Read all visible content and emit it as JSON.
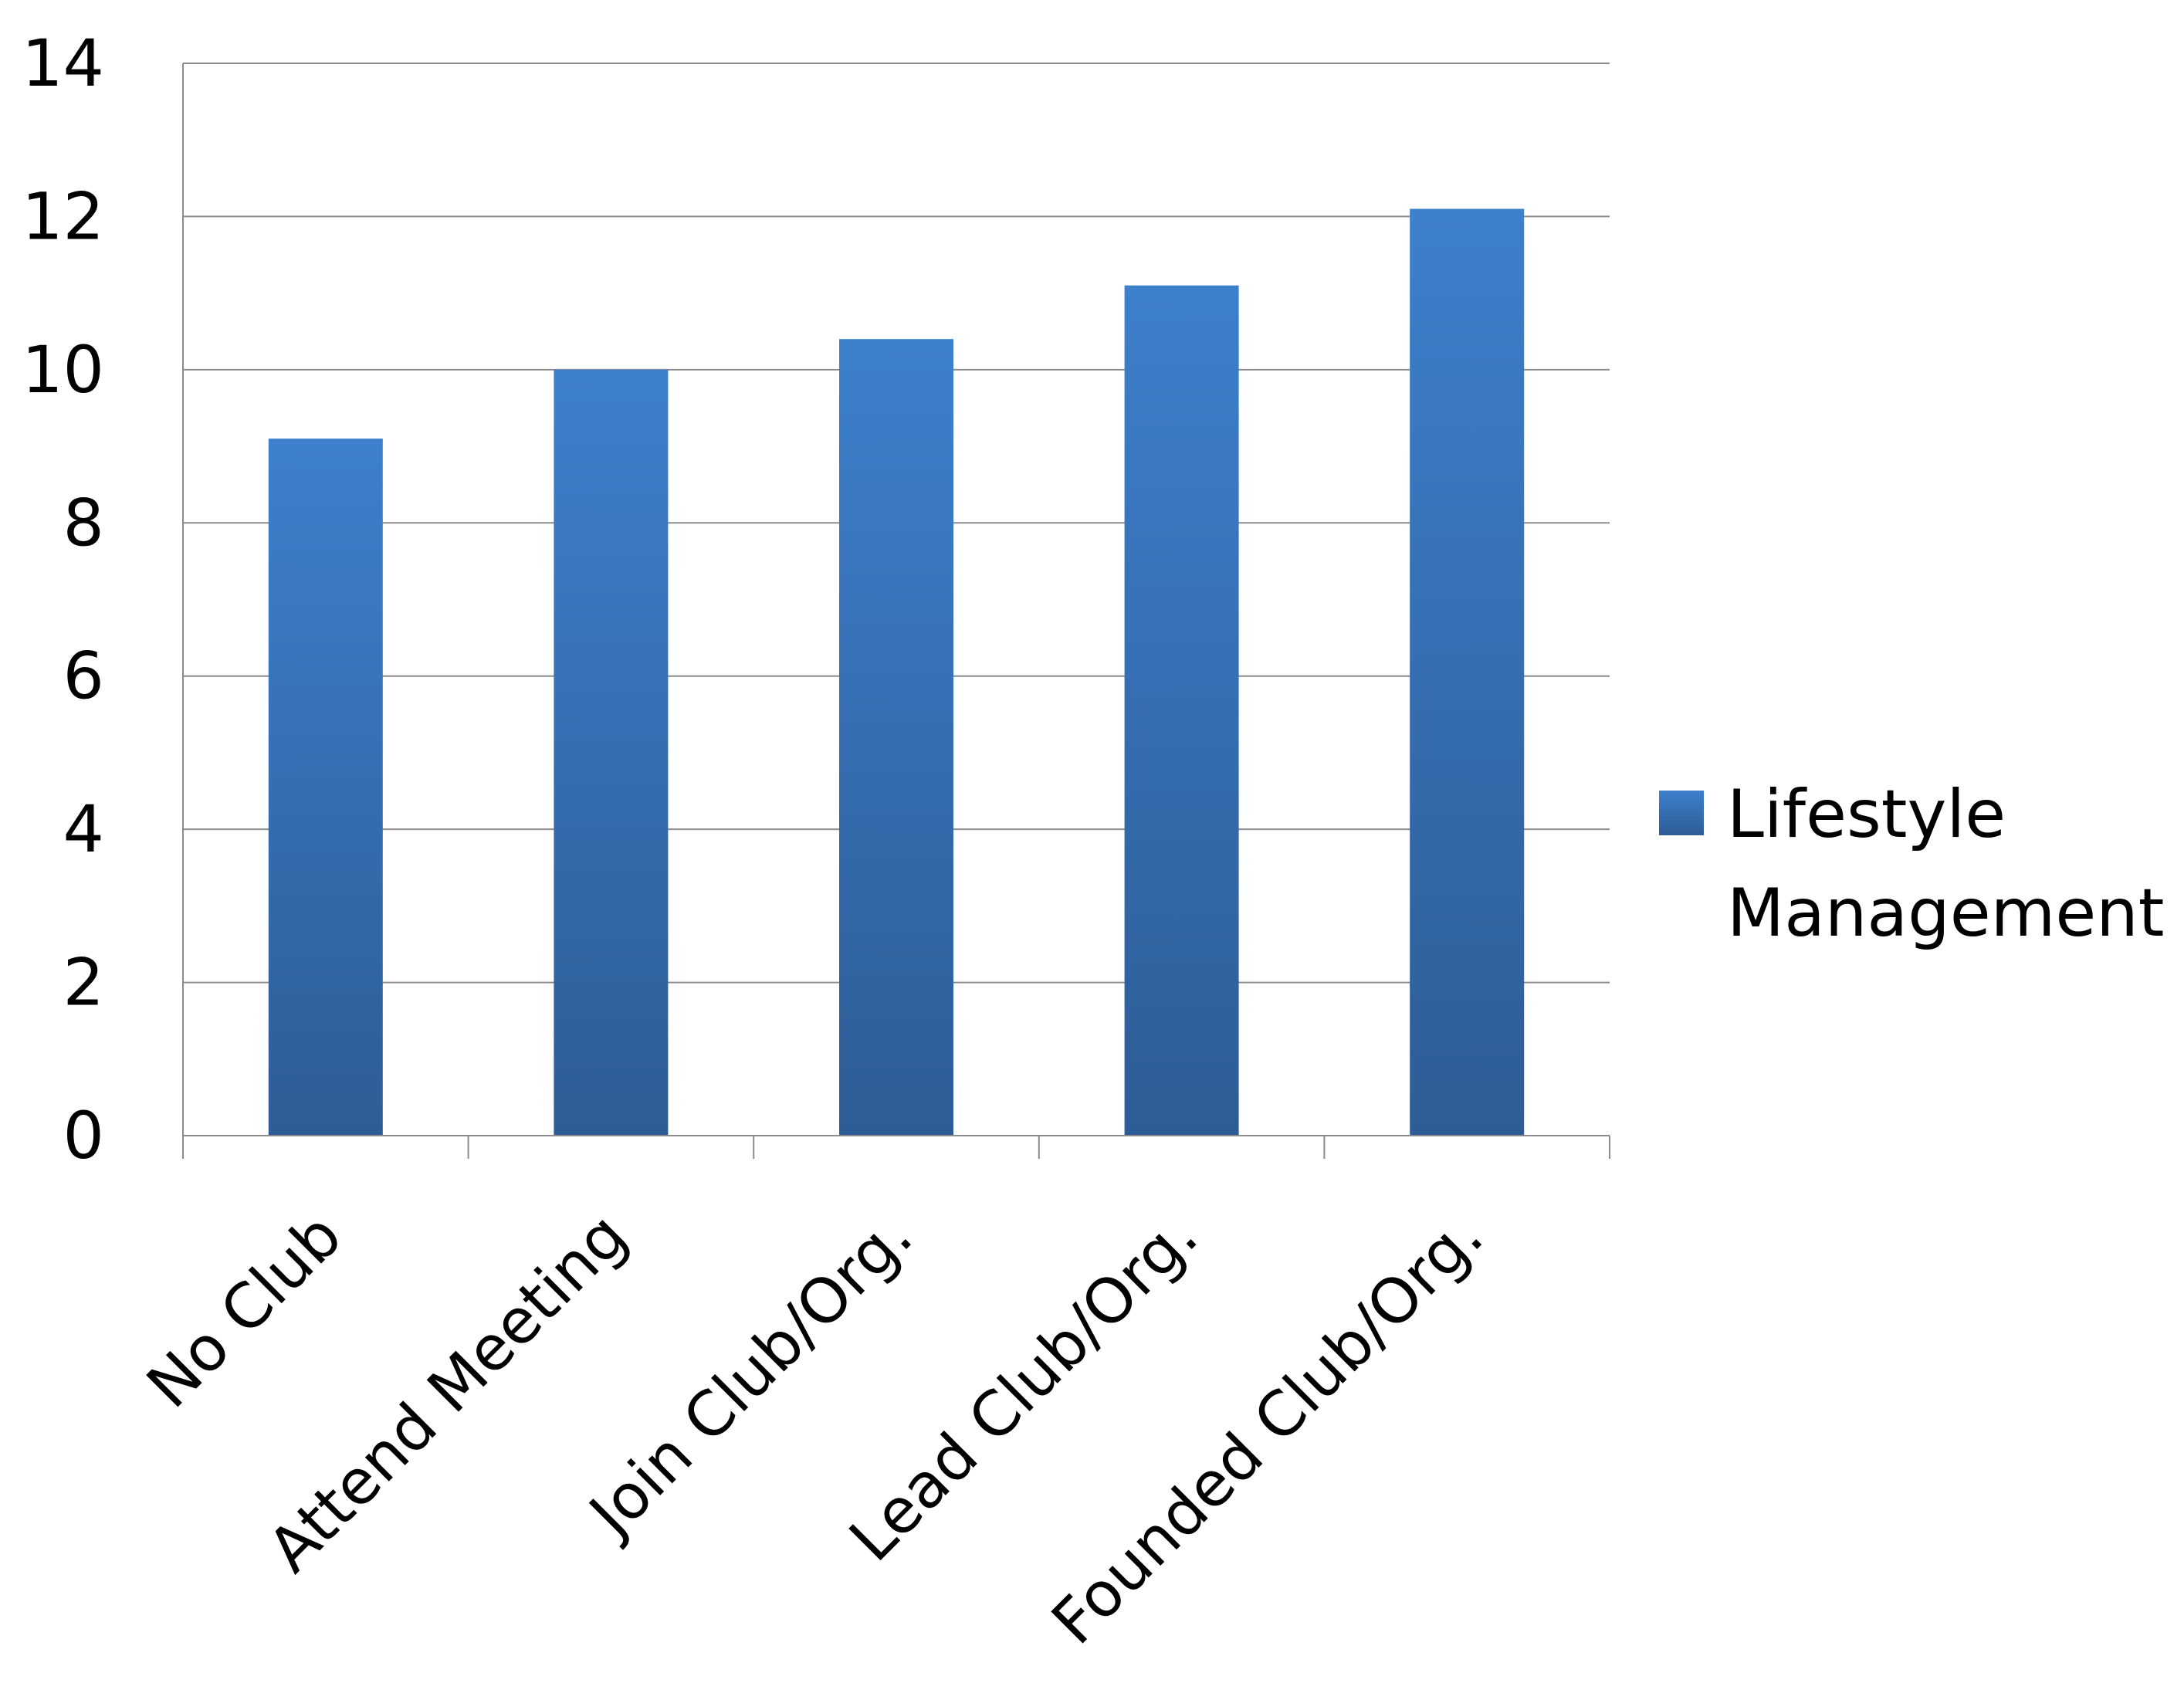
{
  "chart_data": {
    "type": "bar",
    "title": "",
    "xlabel": "",
    "ylabel": "",
    "categories": [
      "No Club",
      "Attend Meeting",
      "Join Club/Org.",
      "Lead Club/Org.",
      "Founded Club/Org."
    ],
    "series": [
      {
        "name": "Lifestyle Management",
        "values": [
          9.1,
          10.0,
          10.4,
          11.1,
          12.1
        ]
      }
    ],
    "ylim": [
      0,
      14
    ],
    "yticks": [
      "0",
      "2",
      "4",
      "6",
      "8",
      "10",
      "12",
      "14"
    ],
    "grid": true,
    "legend": {
      "position": "right",
      "lines": [
        "Lifestyle",
        "Management"
      ]
    },
    "colors": {
      "bar_top": "#3d80cc",
      "bar_bottom": "#2e5c96",
      "grid": "#8c8c8c",
      "axis": "#8c8c8c"
    }
  }
}
